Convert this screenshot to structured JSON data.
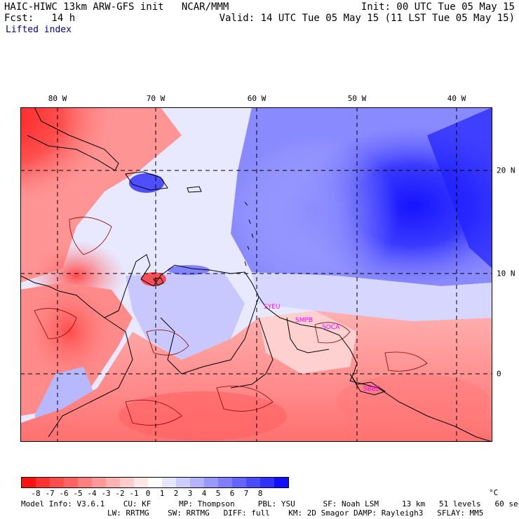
{
  "header": {
    "left_line1": "HAIC-HIWC 13km ARW-GFS init   NCAR/MMM",
    "left_line2": "Fcst:   14 h",
    "right_line1": "Init: 00 UTC Tue 05 May 15",
    "right_line2": "Valid: 14 UTC Tue 05 May 15 (11 LST Tue 05 May 15)",
    "field_name": "Lifted index"
  },
  "map": {
    "lon_labels": [
      "80 W",
      "70 W",
      "60 W",
      "50 W",
      "40 W"
    ],
    "lat_labels": [
      "20 N",
      "10 N",
      "0"
    ],
    "stations": [
      "SYEU",
      "SMPB",
      "SOCA",
      "SBBE"
    ],
    "colors": {
      "unstable": "#ff0000",
      "stable": "#0000ff",
      "station": "#ff00ff"
    }
  },
  "colorbar": {
    "tick_labels": [
      "-8",
      "-7",
      "-6",
      "-5",
      "-4",
      "-3",
      "-2",
      "-1",
      "0",
      "1",
      "2",
      "3",
      "4",
      "5",
      "6",
      "7",
      "8"
    ],
    "unit": "°C",
    "colors": [
      "#ff1010",
      "#ff3030",
      "#ff4c4c",
      "#ff6464",
      "#ff7e7e",
      "#ff9898",
      "#ffb2b2",
      "#ffcccc",
      "#ffe6e6",
      "#ffffff",
      "#e6e6ff",
      "#ccccff",
      "#b2b2ff",
      "#9898ff",
      "#7e7eff",
      "#6464ff",
      "#4c4cff",
      "#3030ff",
      "#1010ff"
    ]
  },
  "footer": {
    "line1": "Model Info: V3.6.1    CU: KF      MP: Thompson     PBL: YSU      SF: Noah LSM     13 km   51 levels   60 sec",
    "line2": "LW: RRTMG    SW: RRTMG   DIFF: full    KM: 2D Smagor DAMP: Rayleigh3   SFLAY: MM5"
  }
}
